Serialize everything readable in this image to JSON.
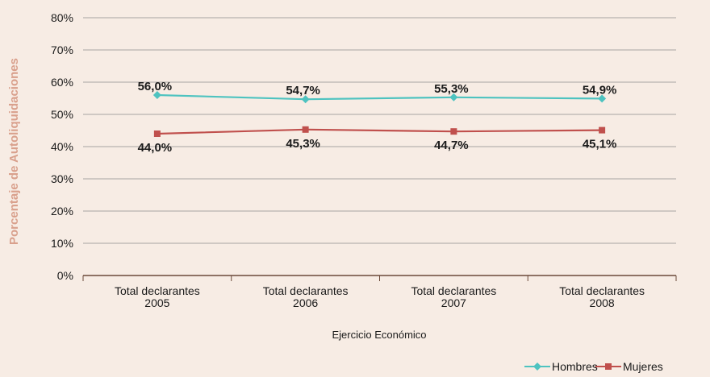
{
  "chart_data": {
    "type": "line",
    "xlabel": "Ejercicio Económico",
    "ylabel": "Porcentaje de Autoliquidaciones",
    "ylim": [
      0,
      80
    ],
    "yticks": [
      "0%",
      "10%",
      "20%",
      "30%",
      "40%",
      "50%",
      "60%",
      "70%",
      "80%"
    ],
    "categories": [
      [
        "Total declarantes",
        "2005"
      ],
      [
        "Total declarantes",
        "2006"
      ],
      [
        "Total declarantes",
        "2007"
      ],
      [
        "Total declarantes",
        "2008"
      ]
    ],
    "grid": true,
    "legend_position": "bottom-right",
    "series": [
      {
        "name": "Hombres",
        "values": [
          56.0,
          54.7,
          55.3,
          54.9
        ],
        "labels": [
          "56,0%",
          "54,7%",
          "55,3%",
          "54,9%"
        ],
        "color": "#4ec3c0",
        "marker": "diamond",
        "label_position": "above"
      },
      {
        "name": "Mujeres",
        "values": [
          44.0,
          45.3,
          44.7,
          45.1
        ],
        "labels": [
          "44,0%",
          "45,3%",
          "44,7%",
          "45,1%"
        ],
        "color": "#c0504d",
        "marker": "square",
        "label_position": "below"
      }
    ],
    "colors": {
      "background": "#f7ece4",
      "grid": "#8c8c8c",
      "axis": "#6b4a3a",
      "ylabel": "#d9a08c"
    }
  }
}
